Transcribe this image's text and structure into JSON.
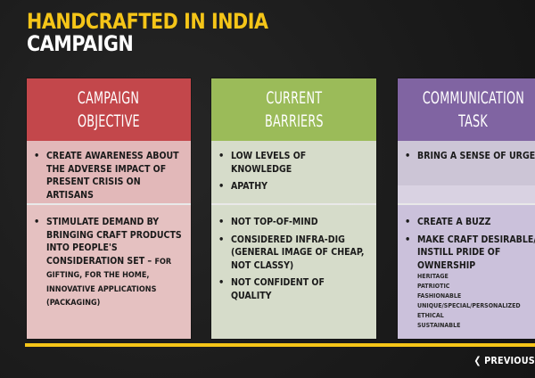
{
  "title": {
    "line1": "Handcrafted in India",
    "line2": "Campaign"
  },
  "colors": {
    "title_accent": "#f5c518",
    "objective_header": "#c3474b",
    "barriers_header": "#9bbb59",
    "task_header": "#8064a2"
  },
  "cards": {
    "objective": {
      "header_line1": "Campaign",
      "header_line2": "Objective",
      "section1": [
        "Create awareness about the adverse impact of present crisis on artisans"
      ],
      "section2": [
        {
          "main": "Stimulate demand by bringing craft products into people's consideration set – ",
          "tail": "for gifting, for the home, innovative applications (packaging)"
        }
      ]
    },
    "barriers": {
      "header_line1": "Current",
      "header_line2": "Barriers",
      "section1": [
        "Low levels of knowledge",
        "Apathy"
      ],
      "section2": [
        "Not top-of-mind",
        "Considered infra-dig (general image of cheap, not classy)",
        "Not confident of quality"
      ]
    },
    "task": {
      "header_line1": "Communication",
      "header_line2": "Task",
      "section1": [
        "Bring a sense of urgency"
      ],
      "section2": [
        "Create a buzz",
        "Make craft desirable/ instill pride of ownership"
      ],
      "sub_items": [
        "Heritage",
        "Patriotic",
        "Fashionable",
        "Unique/Special/Personalized",
        "Ethical",
        "Sustainable"
      ]
    }
  },
  "nav": {
    "prev_label": "Previous",
    "prev_icon": "chevron-left-icon"
  }
}
